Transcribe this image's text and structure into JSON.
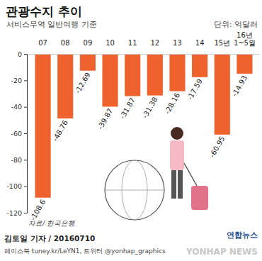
{
  "chart_data": {
    "type": "bar",
    "title": "관광수지 추이",
    "subtitle": "서비스무역 일반여행 기준",
    "categories": [
      "07",
      "08",
      "09",
      "10",
      "11",
      "12",
      "13",
      "14",
      "15년",
      "16년 1~5월"
    ],
    "values": [
      -108.6,
      -48.76,
      -12.69,
      -39.87,
      -31.87,
      -31.38,
      -28.16,
      -17.59,
      -60.95,
      -14.93
    ],
    "color": "#f0622d",
    "ylim": [
      -120,
      0
    ],
    "yticks": [
      0,
      -20,
      -40,
      -60,
      -80,
      -100,
      -120
    ],
    "grid": false,
    "data_labels": true,
    "annotations": [
      "단위: 억달러",
      "자료/ 한국은행",
      "김토일 기자 / 20160710",
      "페이스북 tuney.kr/LeYN1, 트위터 @yonhap_graphics",
      "연합뉴스",
      "YONHAP NEWS"
    ]
  }
}
